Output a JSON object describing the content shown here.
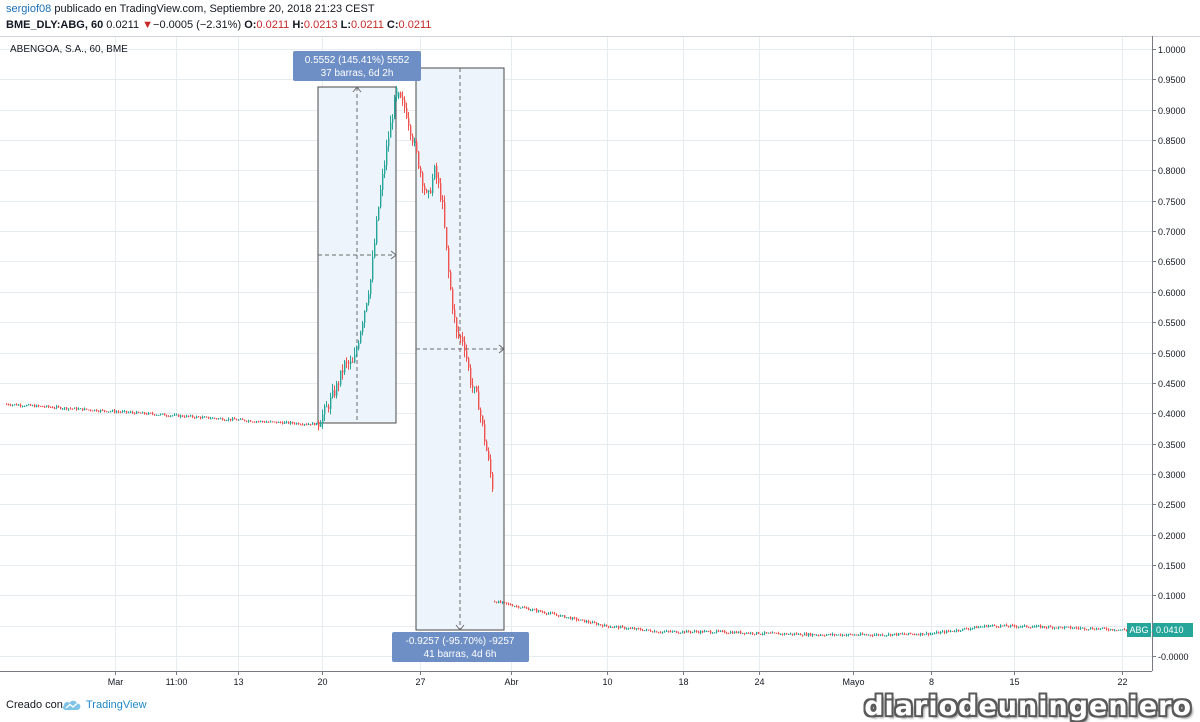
{
  "header": {
    "user": "sergiof08",
    "published_text": "publicado en TradingView.com, Septiembre 20, 2018 21:23 CEST",
    "symbol_line": "BME_DLY:ABG, 60",
    "last": "0.0211",
    "change": "−0.0005 (−2.31%)",
    "o_label": "O:",
    "o_value": "0.0211",
    "h_label": "H:",
    "h_value": "0.0213",
    "l_label": "L:",
    "l_value": "0.0211",
    "c_label": "C:",
    "c_value": "0.0211",
    "down_arrow": "▼"
  },
  "chart": {
    "title": "ABENGOA, S.A., 60, BME",
    "price_tag": "0.0410",
    "price_tag_symbol": "ABG",
    "measure_up": {
      "line1": "0.5552 (145.41%) 5552",
      "line2": "37 barras, 6d 2h"
    },
    "measure_down": {
      "line1": "-0.9257 (-95.70%) -9257",
      "line2": "41 barras, 4d 6h"
    }
  },
  "colors": {
    "up": "#26a69a",
    "down": "#ef5350",
    "grid": "#e6ecef",
    "measure_fill": "#eef4fb",
    "tooltip": "#6d8fc6",
    "price_tag": "#26a69a"
  },
  "footer": {
    "created_label": "Creado con",
    "brand": "TradingView",
    "brand_icon": "tradingview-cloud-icon",
    "watermark": "diariodeuningeniero"
  },
  "chart_data": {
    "type": "candlestick",
    "title": "ABENGOA, S.A., 60, BME",
    "y_ticks": [
      "1.0000",
      "0.9500",
      "0.9000",
      "0.8500",
      "0.8000",
      "0.7500",
      "0.7000",
      "0.6500",
      "0.6000",
      "0.5500",
      "0.5000",
      "0.4500",
      "0.4000",
      "0.3500",
      "0.3000",
      "0.2500",
      "0.2000",
      "0.1500",
      "0.1000",
      "0.0500",
      "-0.0000"
    ],
    "ylim": [
      -0.02,
      1.005
    ],
    "x_ticks": [
      "Mar",
      "11:00",
      "13",
      "20",
      "27",
      "Abr",
      "10",
      "18",
      "24",
      "Mayo",
      "8",
      "15",
      "22"
    ],
    "grid": true,
    "last_price": 0.041,
    "series": [
      {
        "segment": "flat-before-rally",
        "approx_values": [
          0.415,
          0.41,
          0.405,
          0.4,
          0.395,
          0.39,
          0.385,
          0.382
        ]
      },
      {
        "segment": "rally",
        "approx_values": [
          0.385,
          0.41,
          0.44,
          0.48,
          0.48,
          0.55,
          0.62,
          0.75,
          0.85,
          0.93
        ]
      },
      {
        "segment": "crash",
        "approx_values": [
          0.92,
          0.9,
          0.85,
          0.8,
          0.75,
          0.8,
          0.75,
          0.62,
          0.53,
          0.52,
          0.45,
          0.42,
          0.35,
          0.28
        ]
      },
      {
        "segment": "after-crash",
        "approx_values": [
          0.09,
          0.07,
          0.05,
          0.04,
          0.04,
          0.037,
          0.035,
          0.035,
          0.037,
          0.05,
          0.048,
          0.045,
          0.041
        ]
      }
    ]
  }
}
